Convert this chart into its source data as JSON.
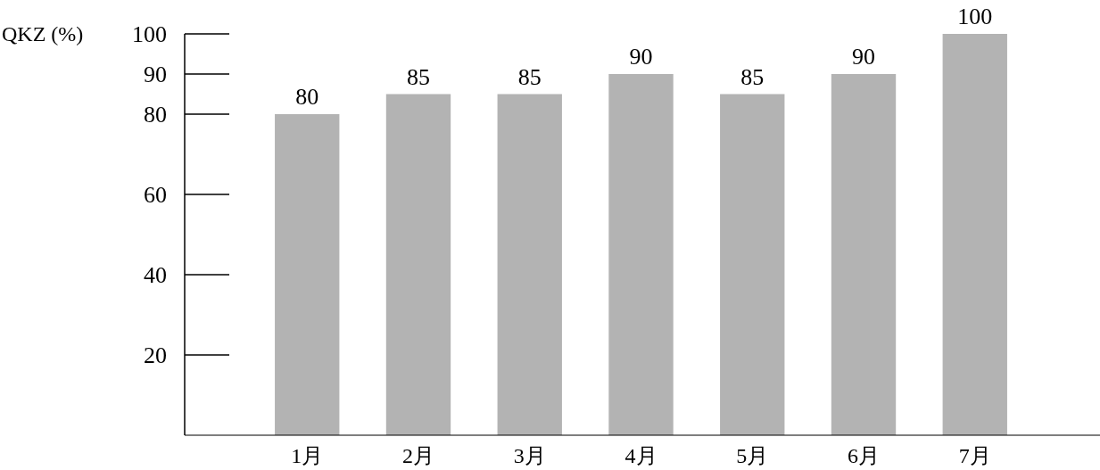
{
  "chart_data": {
    "type": "bar",
    "ylabel": "QKZ (%)",
    "categories": [
      "1月",
      "2月",
      "3月",
      "4月",
      "5月",
      "6月",
      "7月"
    ],
    "values": [
      80,
      85,
      85,
      90,
      85,
      90,
      100
    ],
    "color": "#b3b3b3",
    "ylim": [
      0,
      100
    ],
    "yticks": [
      20,
      40,
      60,
      80,
      90,
      100
    ],
    "data_labels": true
  }
}
